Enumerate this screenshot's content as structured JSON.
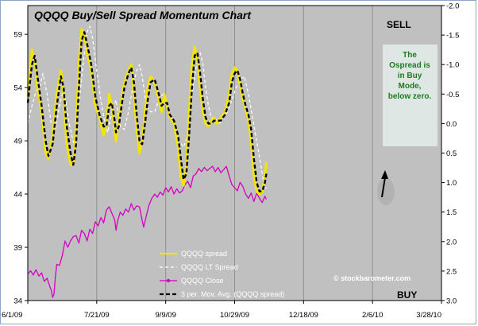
{
  "chart_data": {
    "type": "line",
    "title": "QQQQ Buy/Sell Spread Momentum Chart",
    "x_labels": [
      "6/1/09",
      "7/21/09",
      "9/9/09",
      "10/29/09",
      "12/18/09",
      "2/6/10",
      "3/28/10"
    ],
    "xlim": [
      "6/1/09",
      "3/28/10"
    ],
    "left_axis": {
      "ticks": [
        "34",
        "39",
        "44",
        "49",
        "54",
        "59"
      ],
      "range": [
        34,
        61.7
      ]
    },
    "right_axis": {
      "ticks": [
        "-2.0",
        "-1.5",
        "-1.0",
        "-0.5",
        "0.0",
        "0.5",
        "1.0",
        "1.5",
        "2.0",
        "2.5",
        "3.0"
      ],
      "range": [
        -2.0,
        3.0
      ],
      "inverted": true
    },
    "grid": "vertical",
    "legend_position": "bottom-center",
    "series": [
      {
        "name": "QQQQ spread",
        "axis": "right",
        "color": "#f2e600",
        "points": [
          [
            0,
            -0.45
          ],
          [
            3,
            -1.25
          ],
          [
            5,
            -1.1
          ],
          [
            7,
            -0.6
          ],
          [
            10,
            -0.2
          ],
          [
            13,
            0.5
          ],
          [
            15,
            0.6
          ],
          [
            18,
            0.2
          ],
          [
            21,
            -0.5
          ],
          [
            24,
            -0.9
          ],
          [
            26,
            -0.5
          ],
          [
            28,
            0.3
          ],
          [
            31,
            0.7
          ],
          [
            33,
            0.7
          ],
          [
            35,
            0.1
          ],
          [
            37,
            -1.0
          ],
          [
            39,
            -1.6
          ],
          [
            41,
            -1.5
          ],
          [
            43,
            -1.2
          ],
          [
            46,
            -0.9
          ],
          [
            49,
            -0.3
          ],
          [
            52,
            -0.1
          ],
          [
            55,
            0.2
          ],
          [
            57,
            0.0
          ],
          [
            59,
            -0.5
          ],
          [
            61,
            -0.3
          ],
          [
            63,
            0.1
          ],
          [
            64,
            0.3
          ],
          [
            66,
            -0.1
          ],
          [
            68,
            -0.4
          ],
          [
            70,
            -0.7
          ],
          [
            73,
            -0.9
          ],
          [
            75,
            -1.0
          ],
          [
            77,
            -0.5
          ],
          [
            79,
            0.1
          ],
          [
            81,
            0.5
          ],
          [
            83,
            0.3
          ],
          [
            85,
            -0.2
          ],
          [
            87,
            -0.6
          ],
          [
            89,
            -0.8
          ],
          [
            92,
            -0.7
          ],
          [
            95,
            -0.4
          ],
          [
            97,
            -0.2
          ],
          [
            99,
            -0.5
          ],
          [
            101,
            -0.3
          ],
          [
            103,
            -0.1
          ],
          [
            106,
            0.0
          ],
          [
            109,
            0.4
          ],
          [
            111,
            0.9
          ],
          [
            113,
            1.05
          ],
          [
            115,
            0.7
          ],
          [
            117,
            -0.2
          ],
          [
            119,
            -1.0
          ],
          [
            121,
            -1.3
          ],
          [
            123,
            -1.1
          ],
          [
            125,
            -0.6
          ],
          [
            127,
            -0.2
          ],
          [
            129,
            0.0
          ],
          [
            131,
            0.05
          ],
          [
            133,
            -0.05
          ],
          [
            135,
            -0.1
          ],
          [
            137,
            0.0
          ],
          [
            140,
            -0.1
          ],
          [
            143,
            -0.2
          ],
          [
            146,
            -0.5
          ],
          [
            148,
            -0.85
          ],
          [
            150,
            -0.95
          ],
          [
            152,
            -0.9
          ],
          [
            154,
            -0.65
          ],
          [
            156,
            -0.4
          ],
          [
            158,
            -0.25
          ],
          [
            160,
            -0.05
          ],
          [
            162,
            0.3
          ],
          [
            164,
            0.9
          ],
          [
            166,
            1.15
          ],
          [
            168,
            1.2
          ],
          [
            170,
            1.15
          ],
          [
            172,
            0.9
          ],
          [
            173,
            0.65
          ]
        ]
      },
      {
        "name": "QQQQ LT Spread",
        "axis": "right",
        "color": "#ffffff",
        "points": [
          [
            0,
            0.0
          ],
          [
            3,
            -0.3
          ],
          [
            6,
            -0.55
          ],
          [
            9,
            -0.65
          ],
          [
            11,
            -0.85
          ],
          [
            14,
            -0.5
          ],
          [
            17,
            0.0
          ],
          [
            20,
            0.1
          ],
          [
            23,
            -0.3
          ],
          [
            26,
            -0.6
          ],
          [
            30,
            0.0
          ],
          [
            34,
            0.4
          ],
          [
            37,
            -0.3
          ],
          [
            40,
            -1.0
          ],
          [
            43,
            -1.55
          ],
          [
            45,
            -1.65
          ],
          [
            47,
            -1.45
          ],
          [
            50,
            -0.9
          ],
          [
            53,
            -0.4
          ],
          [
            56,
            0.0
          ],
          [
            58,
            0.15
          ],
          [
            61,
            -0.2
          ],
          [
            64,
            -0.4
          ],
          [
            67,
            0.05
          ],
          [
            70,
            0.1
          ],
          [
            73,
            -0.2
          ],
          [
            76,
            -0.6
          ],
          [
            79,
            -0.9
          ],
          [
            81,
            -1.0
          ],
          [
            83,
            -0.8
          ],
          [
            86,
            -0.3
          ],
          [
            89,
            -0.2
          ],
          [
            92,
            -0.2
          ],
          [
            95,
            -0.4
          ],
          [
            98,
            -0.5
          ],
          [
            101,
            -0.3
          ],
          [
            104,
            -0.1
          ],
          [
            107,
            0.1
          ],
          [
            110,
            0.3
          ],
          [
            113,
            0.4
          ],
          [
            116,
            0.2
          ],
          [
            118,
            -0.3
          ],
          [
            121,
            -0.8
          ],
          [
            123,
            -1.1
          ],
          [
            125,
            -1.2
          ],
          [
            127,
            -1.0
          ],
          [
            129,
            -0.6
          ],
          [
            131,
            -0.3
          ],
          [
            133,
            -0.1
          ],
          [
            136,
            -0.1
          ],
          [
            139,
            0.0
          ],
          [
            142,
            -0.1
          ],
          [
            145,
            -0.2
          ],
          [
            148,
            -0.4
          ],
          [
            151,
            -0.6
          ],
          [
            154,
            -0.75
          ],
          [
            157,
            -0.8
          ],
          [
            160,
            -0.5
          ],
          [
            163,
            -0.1
          ],
          [
            166,
            0.3
          ],
          [
            169,
            0.7
          ],
          [
            171,
            1.0
          ],
          [
            173,
            1.1
          ]
        ]
      },
      {
        "name": "QQQQ Close",
        "axis": "left",
        "color": "#d400c0",
        "points": [
          [
            0,
            36.5
          ],
          [
            2,
            36.8
          ],
          [
            4,
            36.4
          ],
          [
            6,
            36.9
          ],
          [
            8,
            36.3
          ],
          [
            10,
            36.6
          ],
          [
            12,
            35.8
          ],
          [
            14,
            36.1
          ],
          [
            16,
            35.3
          ],
          [
            17,
            35.0
          ],
          [
            18,
            34.3
          ],
          [
            19,
            34.6
          ],
          [
            20,
            36.2
          ],
          [
            21,
            37.4
          ],
          [
            23,
            37.3
          ],
          [
            25,
            38.2
          ],
          [
            27,
            39.6
          ],
          [
            29,
            39.0
          ],
          [
            31,
            39.6
          ],
          [
            33,
            40.0
          ],
          [
            35,
            40.1
          ],
          [
            37,
            39.4
          ],
          [
            39,
            40.6
          ],
          [
            41,
            40.3
          ],
          [
            43,
            39.6
          ],
          [
            45,
            40.7
          ],
          [
            47,
            40.3
          ],
          [
            49,
            41.4
          ],
          [
            51,
            41.0
          ],
          [
            53,
            41.8
          ],
          [
            55,
            41.3
          ],
          [
            57,
            42.5
          ],
          [
            59,
            42.8
          ],
          [
            61,
            42.2
          ],
          [
            63,
            41.6
          ],
          [
            64,
            40.6
          ],
          [
            65,
            41.4
          ],
          [
            67,
            42.3
          ],
          [
            69,
            42.0
          ],
          [
            71,
            42.6
          ],
          [
            73,
            42.3
          ],
          [
            75,
            43.1
          ],
          [
            77,
            42.5
          ],
          [
            79,
            42.9
          ],
          [
            81,
            42.8
          ],
          [
            83,
            41.5
          ],
          [
            84,
            40.9
          ],
          [
            86,
            42.0
          ],
          [
            88,
            43.0
          ],
          [
            90,
            43.6
          ],
          [
            92,
            44.0
          ],
          [
            94,
            43.7
          ],
          [
            96,
            44.2
          ],
          [
            98,
            43.9
          ],
          [
            100,
            44.6
          ],
          [
            102,
            44.2
          ],
          [
            104,
            44.7
          ],
          [
            106,
            44.0
          ],
          [
            108,
            44.5
          ],
          [
            110,
            44.1
          ],
          [
            112,
            44.3
          ],
          [
            114,
            44.9
          ],
          [
            116,
            45.2
          ],
          [
            118,
            44.6
          ],
          [
            120,
            45.7
          ],
          [
            122,
            45.9
          ],
          [
            124,
            46.4
          ],
          [
            126,
            46.1
          ],
          [
            128,
            46.5
          ],
          [
            130,
            46.2
          ],
          [
            132,
            46.4
          ],
          [
            134,
            46.6
          ],
          [
            136,
            46.1
          ],
          [
            138,
            46.5
          ],
          [
            140,
            46.0
          ],
          [
            142,
            46.3
          ],
          [
            144,
            46.6
          ],
          [
            146,
            45.7
          ],
          [
            148,
            44.9
          ],
          [
            150,
            44.6
          ],
          [
            152,
            44.3
          ],
          [
            154,
            45.1
          ],
          [
            156,
            44.7
          ],
          [
            158,
            44.0
          ],
          [
            160,
            43.6
          ],
          [
            162,
            44.1
          ],
          [
            164,
            43.3
          ],
          [
            166,
            44.1
          ],
          [
            168,
            43.6
          ],
          [
            170,
            43.2
          ],
          [
            172,
            43.8
          ],
          [
            173,
            43.5
          ]
        ]
      },
      {
        "name": "3 per. Mov. Avg. (QQQQ spread)",
        "axis": "right",
        "color": "#000000",
        "points": [
          [
            0,
            -0.35
          ],
          [
            3,
            -1.0
          ],
          [
            5,
            -1.15
          ],
          [
            7,
            -0.8
          ],
          [
            10,
            -0.3
          ],
          [
            13,
            0.3
          ],
          [
            15,
            0.55
          ],
          [
            18,
            0.35
          ],
          [
            21,
            -0.3
          ],
          [
            24,
            -0.8
          ],
          [
            26,
            -0.6
          ],
          [
            28,
            0.0
          ],
          [
            31,
            0.5
          ],
          [
            33,
            0.7
          ],
          [
            35,
            0.35
          ],
          [
            37,
            -0.6
          ],
          [
            39,
            -1.4
          ],
          [
            41,
            -1.55
          ],
          [
            43,
            -1.35
          ],
          [
            46,
            -1.0
          ],
          [
            49,
            -0.45
          ],
          [
            52,
            -0.15
          ],
          [
            55,
            0.05
          ],
          [
            57,
            0.05
          ],
          [
            59,
            -0.3
          ],
          [
            61,
            -0.35
          ],
          [
            63,
            -0.05
          ],
          [
            64,
            0.15
          ],
          [
            66,
            0.05
          ],
          [
            68,
            -0.3
          ],
          [
            70,
            -0.6
          ],
          [
            73,
            -0.85
          ],
          [
            75,
            -0.95
          ],
          [
            77,
            -0.7
          ],
          [
            79,
            -0.15
          ],
          [
            81,
            0.3
          ],
          [
            83,
            0.35
          ],
          [
            85,
            0.0
          ],
          [
            87,
            -0.4
          ],
          [
            89,
            -0.7
          ],
          [
            92,
            -0.75
          ],
          [
            95,
            -0.5
          ],
          [
            97,
            -0.3
          ],
          [
            99,
            -0.35
          ],
          [
            101,
            -0.35
          ],
          [
            103,
            -0.15
          ],
          [
            106,
            -0.05
          ],
          [
            109,
            0.2
          ],
          [
            111,
            0.6
          ],
          [
            113,
            0.95
          ],
          [
            115,
            0.85
          ],
          [
            117,
            0.2
          ],
          [
            119,
            -0.6
          ],
          [
            121,
            -1.15
          ],
          [
            123,
            -1.2
          ],
          [
            125,
            -0.85
          ],
          [
            127,
            -0.4
          ],
          [
            129,
            -0.1
          ],
          [
            131,
            0.0
          ],
          [
            133,
            0.0
          ],
          [
            135,
            -0.05
          ],
          [
            137,
            -0.05
          ],
          [
            140,
            -0.05
          ],
          [
            143,
            -0.15
          ],
          [
            146,
            -0.35
          ],
          [
            148,
            -0.7
          ],
          [
            150,
            -0.85
          ],
          [
            152,
            -0.9
          ],
          [
            154,
            -0.75
          ],
          [
            156,
            -0.5
          ],
          [
            158,
            -0.3
          ],
          [
            160,
            -0.15
          ],
          [
            162,
            0.1
          ],
          [
            164,
            0.6
          ],
          [
            166,
            1.0
          ],
          [
            168,
            1.15
          ],
          [
            170,
            1.15
          ],
          [
            172,
            1.0
          ],
          [
            173,
            0.85
          ]
        ]
      }
    ],
    "annotations": {
      "sell_label": "SELL",
      "buy_label": "BUY",
      "note": [
        "The",
        "Ospread is",
        "in Buy",
        "Mode,",
        "below zero."
      ],
      "watermark": "© stockbarometer.com"
    }
  },
  "colors": {
    "plot_bg": "#c0c0c0",
    "note_bg": "#dfe7e5",
    "note_text": "#1f7a1f"
  }
}
